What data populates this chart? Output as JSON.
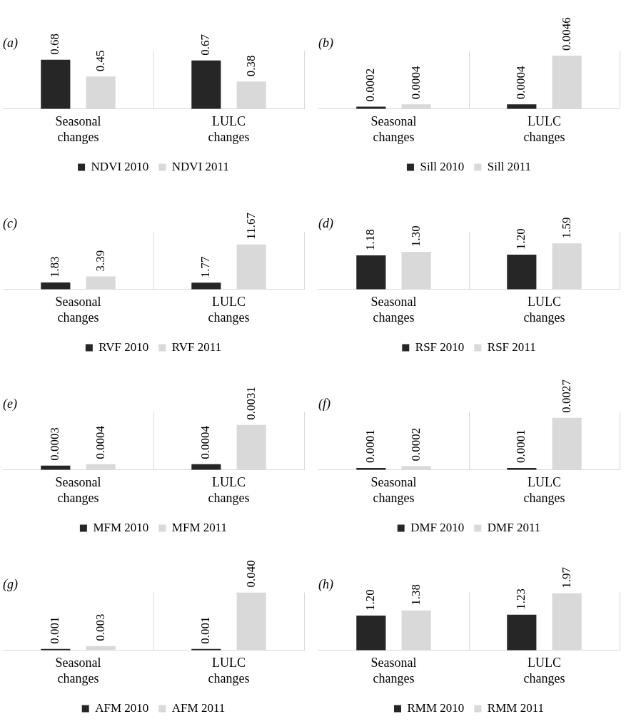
{
  "chart_data": [
    {
      "type": "bar",
      "title": "(a)",
      "categories": [
        "Seasonal changes",
        "LULC changes"
      ],
      "grid": "x",
      "legend": "bottom",
      "series": [
        {
          "name": "NDVI 2010",
          "color": "#262626",
          "values": [
            0.68,
            0.67
          ],
          "value_labels": [
            "0.68",
            "0.67"
          ]
        },
        {
          "name": "NDVI 2011",
          "color": "#d9d9d9",
          "values": [
            0.45,
            0.38
          ],
          "value_labels": [
            "0.45",
            "0.38"
          ]
        }
      ]
    },
    {
      "type": "bar",
      "title": "(b)",
      "categories": [
        "Seasonal changes",
        "LULC changes"
      ],
      "grid": "x",
      "legend": "bottom",
      "series": [
        {
          "name": "Sill 2010",
          "color": "#262626",
          "values": [
            0.0002,
            0.0004
          ],
          "value_labels": [
            "0.0002",
            "0.0004"
          ]
        },
        {
          "name": "Sill 2011",
          "color": "#d9d9d9",
          "values": [
            0.0004,
            0.0046
          ],
          "value_labels": [
            "0.0004",
            "0.0046"
          ]
        }
      ]
    },
    {
      "type": "bar",
      "title": "(c)",
      "categories": [
        "Seasonal changes",
        "LULC changes"
      ],
      "grid": "x",
      "legend": "bottom",
      "series": [
        {
          "name": "RVF 2010",
          "color": "#262626",
          "values": [
            1.83,
            1.77
          ],
          "value_labels": [
            "1.83",
            "1.77"
          ]
        },
        {
          "name": "RVF 2011",
          "color": "#d9d9d9",
          "values": [
            3.39,
            11.67
          ],
          "value_labels": [
            "3.39",
            "11.67"
          ]
        }
      ]
    },
    {
      "type": "bar",
      "title": "(d)",
      "categories": [
        "Seasonal changes",
        "LULC changes"
      ],
      "grid": "x",
      "legend": "bottom",
      "series": [
        {
          "name": "RSF 2010",
          "color": "#262626",
          "values": [
            1.18,
            1.2
          ],
          "value_labels": [
            "1.18",
            "1.20"
          ]
        },
        {
          "name": "RSF 2011",
          "color": "#d9d9d9",
          "values": [
            1.3,
            1.59
          ],
          "value_labels": [
            "1.30",
            "1.59"
          ]
        }
      ]
    },
    {
      "type": "bar",
      "title": "(e)",
      "categories": [
        "Seasonal changes",
        "LULC changes"
      ],
      "grid": "x",
      "legend": "bottom",
      "series": [
        {
          "name": "MFM 2010",
          "color": "#262626",
          "values": [
            0.0003,
            0.0004
          ],
          "value_labels": [
            "0.0003",
            "0.0004"
          ]
        },
        {
          "name": "MFM 2011",
          "color": "#d9d9d9",
          "values": [
            0.0004,
            0.0031
          ],
          "value_labels": [
            "0.0004",
            "0.0031"
          ]
        }
      ]
    },
    {
      "type": "bar",
      "title": "(f)",
      "categories": [
        "Seasonal changes",
        "LULC changes"
      ],
      "grid": "x",
      "legend": "bottom",
      "series": [
        {
          "name": "DMF 2010",
          "color": "#262626",
          "values": [
            0.0001,
            0.0001
          ],
          "value_labels": [
            "0.0001",
            "0.0001"
          ]
        },
        {
          "name": "DMF 2011",
          "color": "#d9d9d9",
          "values": [
            0.0002,
            0.0027
          ],
          "value_labels": [
            "0.0002",
            "0.0027"
          ]
        }
      ]
    },
    {
      "type": "bar",
      "title": "(g)",
      "categories": [
        "Seasonal changes",
        "LULC changes"
      ],
      "grid": "x",
      "legend": "bottom",
      "series": [
        {
          "name": "AFM 2010",
          "color": "#262626",
          "values": [
            0.001,
            0.001
          ],
          "value_labels": [
            "0.001",
            "0.001"
          ]
        },
        {
          "name": "AFM 2011",
          "color": "#d9d9d9",
          "values": [
            0.003,
            0.04
          ],
          "value_labels": [
            "0.003",
            "0.040"
          ]
        }
      ]
    },
    {
      "type": "bar",
      "title": "(h)",
      "categories": [
        "Seasonal changes",
        "LULC changes"
      ],
      "grid": "x",
      "legend": "bottom",
      "series": [
        {
          "name": "RMM 2010",
          "color": "#262626",
          "values": [
            1.2,
            1.23
          ],
          "value_labels": [
            "1.20",
            "1.23"
          ]
        },
        {
          "name": "RMM 2011",
          "color": "#d9d9d9",
          "values": [
            1.38,
            1.97
          ],
          "value_labels": [
            "1.38",
            "1.97"
          ]
        }
      ]
    }
  ]
}
